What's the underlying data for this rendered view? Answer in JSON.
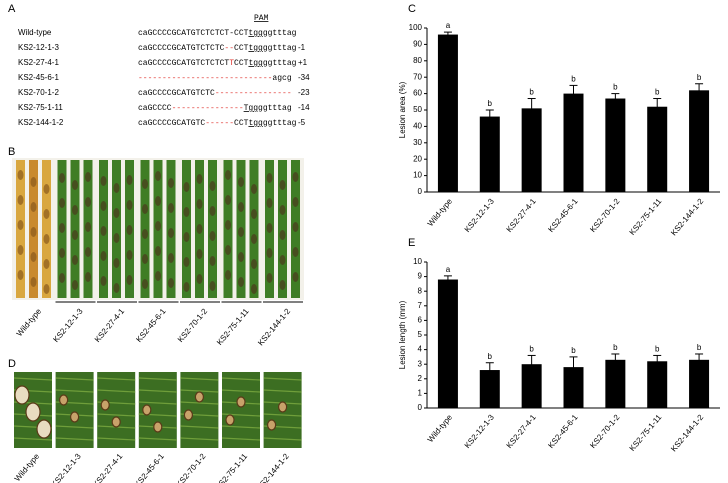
{
  "panel_labels": {
    "a": "A",
    "b": "B",
    "c": "C",
    "d": "D",
    "e": "E"
  },
  "alignment": {
    "pam_label": "PAM",
    "rows": [
      {
        "name": "Wild-type",
        "segments": [
          {
            "text": "caGCCCCGCATGTCTCTCT-CCT"
          },
          {
            "text": "tgg",
            "underline": true
          },
          {
            "text": "ggtttag"
          }
        ]
      },
      {
        "name": "KS2-12-1-3",
        "segments": [
          {
            "text": "caGCCCCGCATGTCTCTC"
          },
          {
            "text": "--",
            "color": "#e0302a"
          },
          {
            "text": "CCT"
          },
          {
            "text": "tgg",
            "underline": true
          },
          {
            "text": "ggtttag"
          }
        ],
        "indel": "-1"
      },
      {
        "name": "KS2-27-4-1",
        "segments": [
          {
            "text": "caGCCCCGCATGTCTCTCT"
          },
          {
            "text": "T",
            "color": "#e0302a"
          },
          {
            "text": "CCT"
          },
          {
            "text": "tgg",
            "underline": true
          },
          {
            "text": "ggtttag"
          }
        ],
        "indel": "+1"
      },
      {
        "name": "KS2-45-6-1",
        "segments": [
          {
            "text": "----------------------------",
            "color": "#e0302a"
          },
          {
            "text": "agcg"
          }
        ],
        "indel": "-34"
      },
      {
        "name": "KS2-70-1-2",
        "segments": [
          {
            "text": "caGCCCCGCATGTCTC"
          },
          {
            "text": "----------------",
            "color": "#e0302a"
          }
        ],
        "indel": "-23"
      },
      {
        "name": "KS2-75-1-11",
        "segments": [
          {
            "text": "caGCCCC"
          },
          {
            "text": "---------------",
            "color": "#e0302a"
          },
          {
            "text": "Tgg",
            "underline": true
          },
          {
            "text": "ggtttag"
          }
        ],
        "indel": "-14"
      },
      {
        "name": "KS2-144-1-2",
        "segments": [
          {
            "text": "caGCCCCGCATGTC"
          },
          {
            "text": "------",
            "color": "#e0302a"
          },
          {
            "text": "CCT"
          },
          {
            "text": "tgg",
            "underline": true
          },
          {
            "text": "ggtttag"
          }
        ],
        "indel": "-5"
      }
    ]
  },
  "panel_b": {
    "labels": [
      "Wild-type",
      "KS2-12-1-3",
      "KS2-27-4-1",
      "KS2-45-6-1",
      "KS2-70-1-2",
      "KS2-75-1-11",
      "KS2-144-1-2"
    ]
  },
  "panel_d": {
    "labels": [
      "Wild-type",
      "KS2-12-1-3",
      "KS2-27-4-1",
      "KS2-45-6-1",
      "KS2-70-1-2",
      "KS2-75-1-11",
      "KS2-144-1-2"
    ]
  },
  "chart_data": [
    {
      "type": "bar",
      "y_label": "Lesion area (%)",
      "color": "#000000",
      "categories": [
        "Wild-type",
        "KS2-12-1-3",
        "KS2-27-4-1",
        "KS2-45-6-1",
        "KS2-70-1-2",
        "KS2-75-1-11",
        "KS2-144-1-2"
      ],
      "values": [
        96,
        46,
        51,
        60,
        57,
        52,
        62
      ],
      "errors": [
        1.5,
        4,
        6,
        5,
        3,
        5,
        4
      ],
      "annotations": [
        "a",
        "b",
        "b",
        "b",
        "b",
        "b",
        "b"
      ],
      "ylim": [
        0,
        100
      ],
      "yticks": [
        0,
        10,
        20,
        30,
        40,
        50,
        60,
        70,
        80,
        90,
        100
      ]
    },
    {
      "type": "bar",
      "y_label": "Lesion length (mm)",
      "color": "#000000",
      "categories": [
        "Wild-type",
        "KS2-12-1-3",
        "KS2-27-4-1",
        "KS2-45-6-1",
        "KS2-70-1-2",
        "KS2-75-1-11",
        "KS2-144-1-2"
      ],
      "values": [
        8.8,
        2.6,
        3.0,
        2.8,
        3.3,
        3.2,
        3.3
      ],
      "errors": [
        0.25,
        0.5,
        0.6,
        0.7,
        0.4,
        0.4,
        0.4
      ],
      "annotations": [
        "a",
        "b",
        "b",
        "b",
        "b",
        "b",
        "b"
      ],
      "ylim": [
        0,
        10
      ],
      "yticks": [
        0,
        1,
        2,
        3,
        4,
        5,
        6,
        7,
        8,
        9,
        10
      ]
    }
  ]
}
